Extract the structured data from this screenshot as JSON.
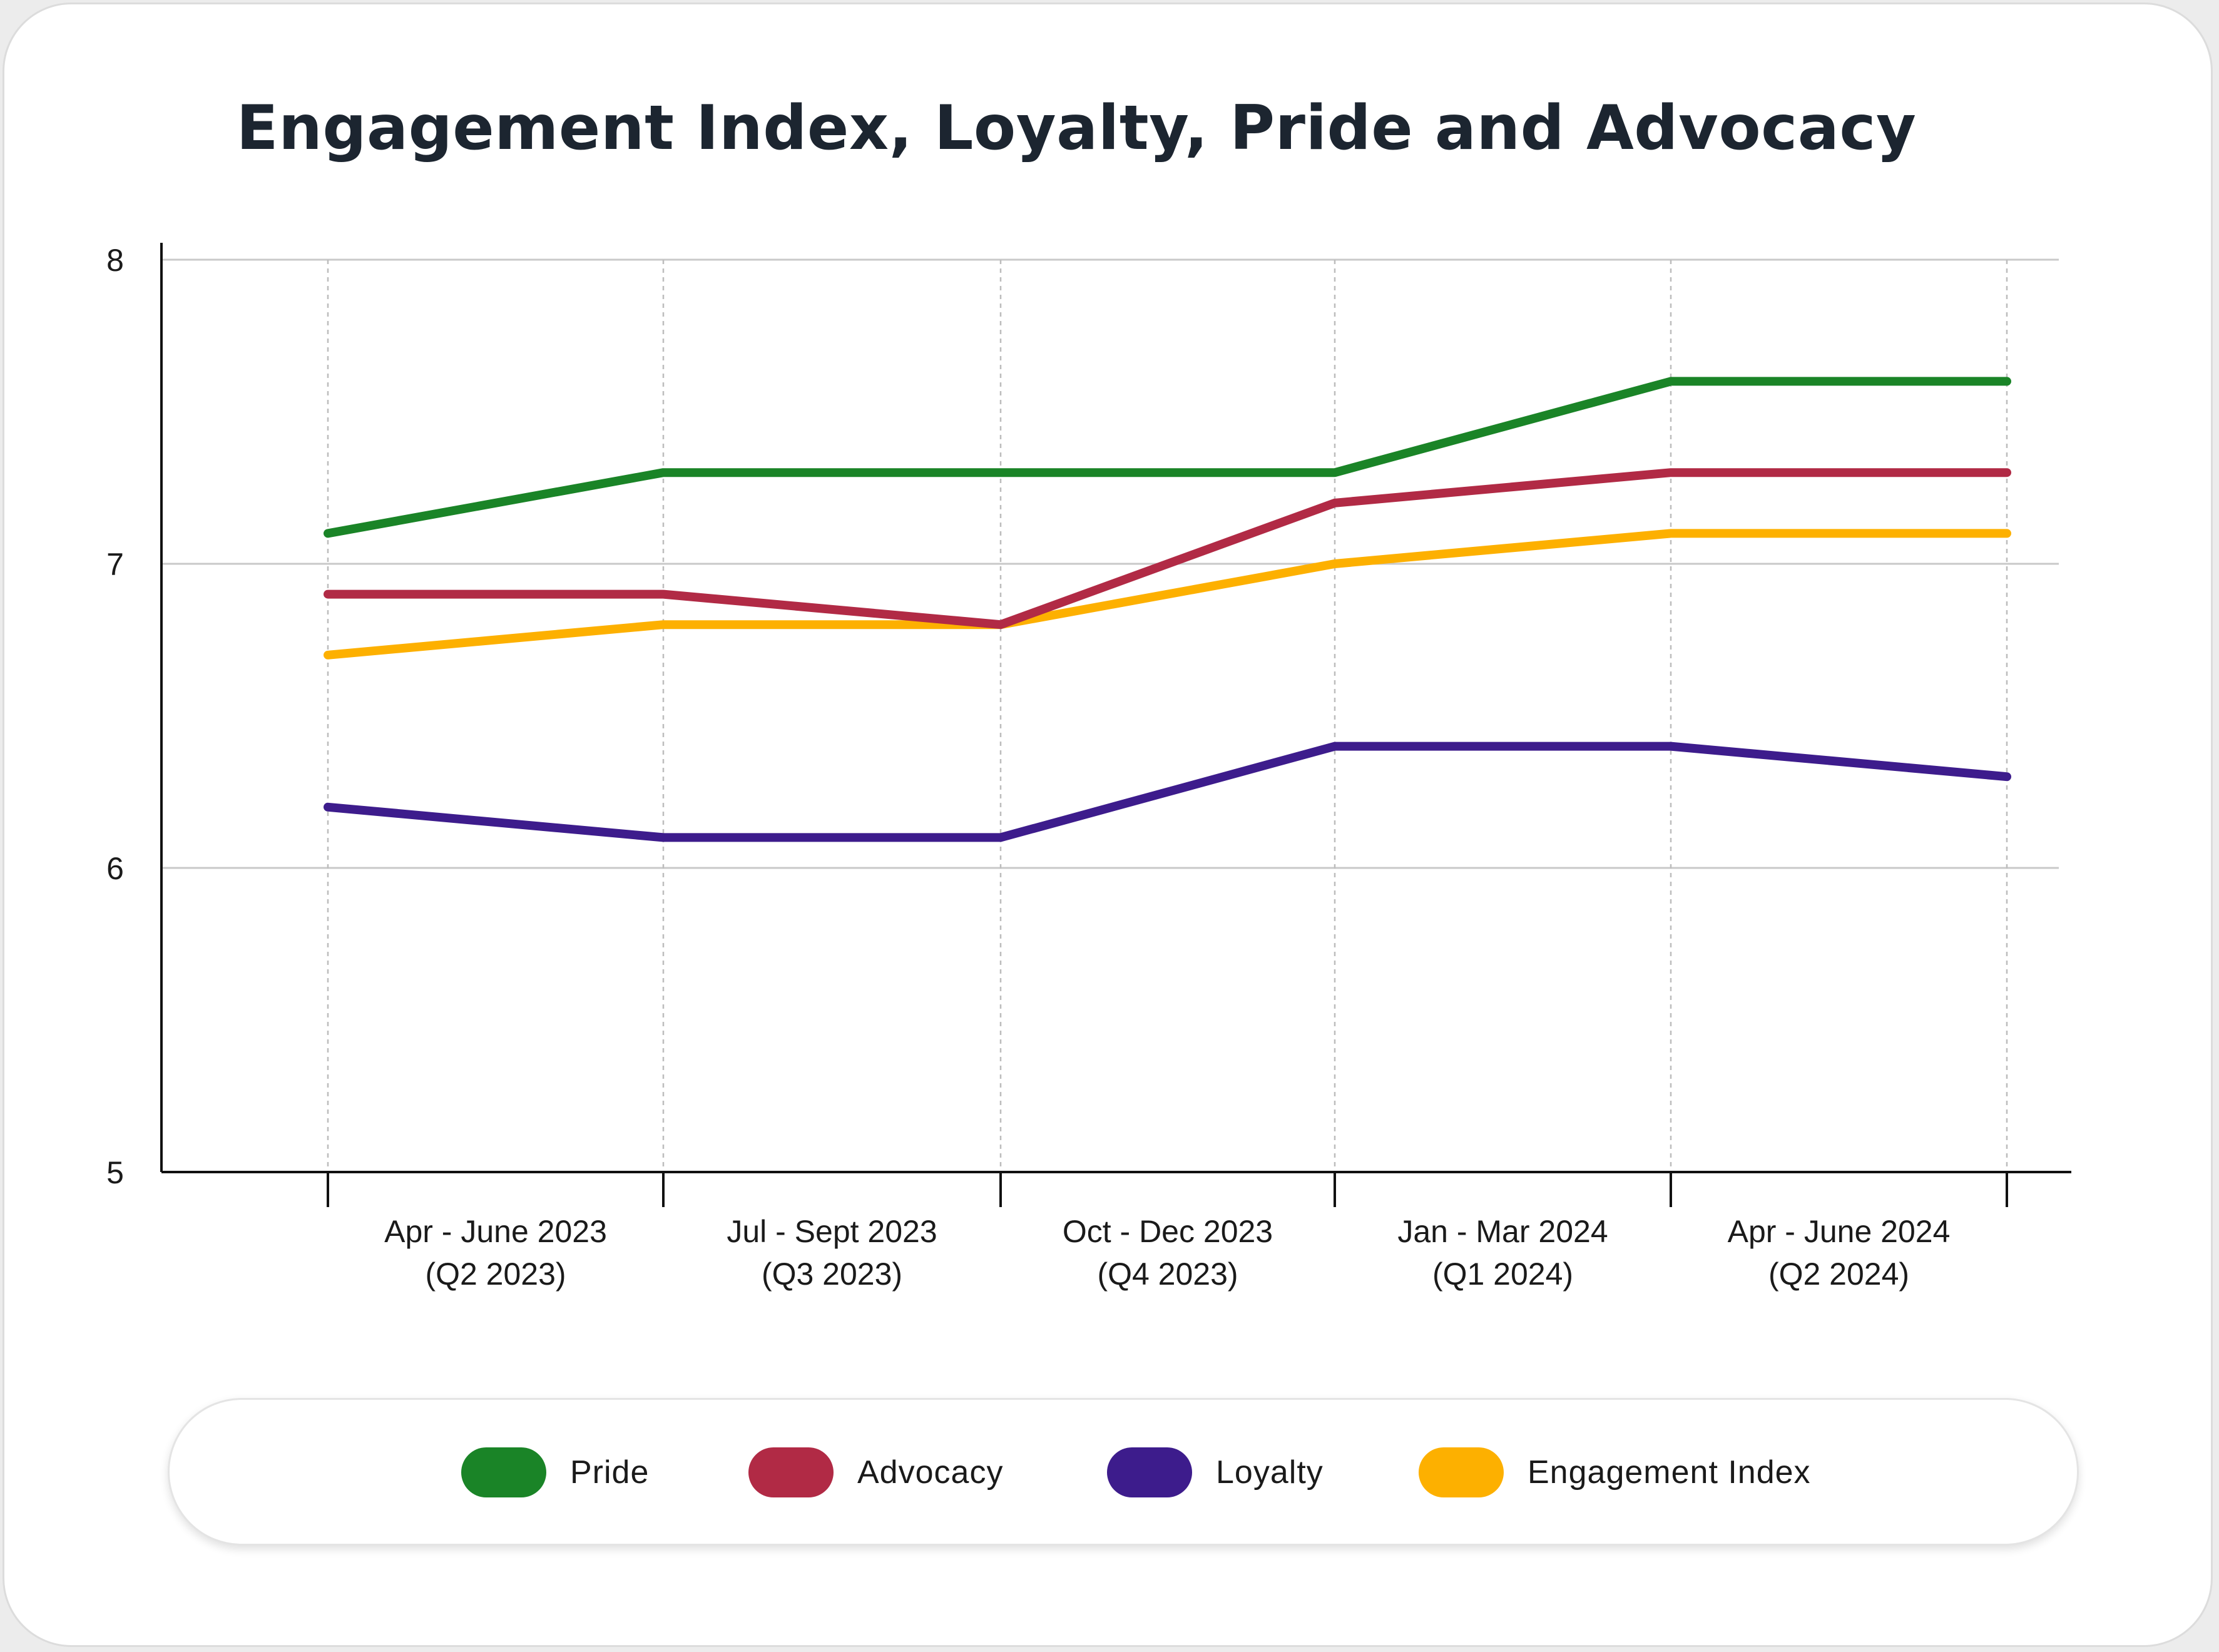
{
  "chart_data": {
    "type": "line",
    "title": "Engagement Index, Loyalty, Pride and Advocacy",
    "categories": [
      [
        "Apr - June 2023",
        "(Q2 2023)"
      ],
      [
        "Jul - Sept 2023",
        "(Q3 2023)"
      ],
      [
        "Oct - Dec 2023",
        "(Q4 2023)"
      ],
      [
        "Jan - Mar 2024",
        "(Q1 2024)"
      ],
      [
        "Apr - June 2024",
        "(Q2 2024)"
      ],
      [
        "",
        ""
      ]
    ],
    "ylim": [
      5,
      8
    ],
    "yticks": [
      "5",
      "6",
      "7",
      "8"
    ],
    "xlabel": "",
    "ylabel": "",
    "grid": true,
    "legend_position": "bottom",
    "series": [
      {
        "name": "Pride",
        "color": "#1a8427",
        "values": [
          7.1,
          7.3,
          7.3,
          7.3,
          7.6,
          7.6
        ]
      },
      {
        "name": "Advocacy",
        "color": "#b12a45",
        "values": [
          6.9,
          6.9,
          6.8,
          7.2,
          7.3,
          7.3
        ]
      },
      {
        "name": "Loyalty",
        "color": "#3d1c8c",
        "values": [
          6.2,
          6.1,
          6.1,
          6.4,
          6.4,
          6.3
        ]
      },
      {
        "name": "Engagement Index",
        "color": "#fdb000",
        "values": [
          6.7,
          6.8,
          6.8,
          7.0,
          7.1,
          7.1
        ]
      }
    ]
  },
  "legend": {
    "items": [
      {
        "label": "Pride",
        "color": "#1a8427"
      },
      {
        "label": "Advocacy",
        "color": "#b12a45"
      },
      {
        "label": "Loyalty",
        "color": "#3d1c8c"
      },
      {
        "label": "Engagement Index",
        "color": "#fdb000"
      }
    ]
  }
}
